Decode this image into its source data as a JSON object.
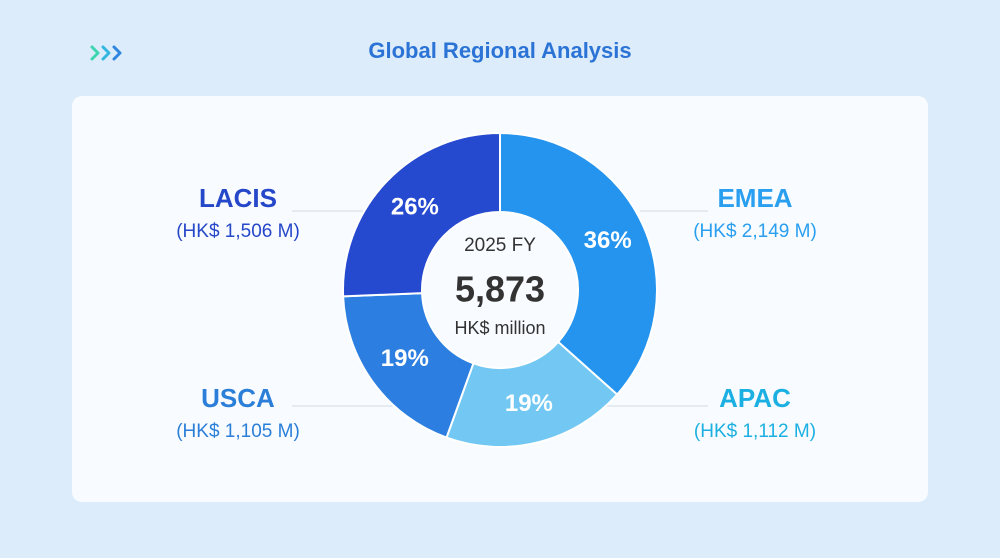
{
  "chart_data": {
    "type": "pie",
    "title": "Global Regional Analysis",
    "categories": [
      "EMEA",
      "APAC",
      "USCA",
      "LACIS"
    ],
    "values": [
      2149,
      1112,
      1105,
      1506
    ],
    "value_labels": [
      "(HK$ 2,149 M)",
      "(HK$ 1,112 M)",
      "(HK$ 1,105 M)",
      "(HK$ 1,506 M)"
    ],
    "percent_labels": [
      "36%",
      "19%",
      "19%",
      "26%"
    ],
    "colors": [
      "#2594ef",
      "#72c8f2",
      "#2c7fe0",
      "#2549cf"
    ],
    "label_colors": [
      "#2a9ff0",
      "#1cb0e2",
      "#2b7fd9",
      "#2547c9"
    ],
    "center_caption": "2025 FY",
    "total": {
      "value": 5873,
      "label": "5,873"
    },
    "center_unit": "HK$ million"
  }
}
